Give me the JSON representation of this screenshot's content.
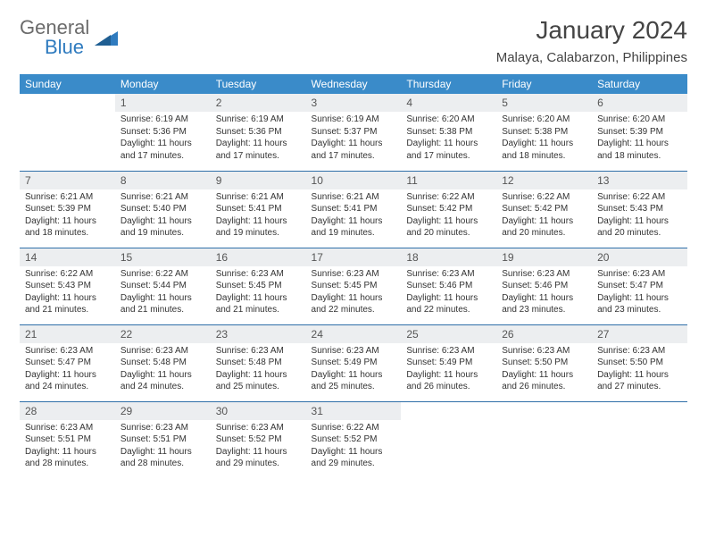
{
  "brand": {
    "part1": "General",
    "part2": "Blue"
  },
  "title": "January 2024",
  "location": "Malaya, Calabarzon, Philippines",
  "colors": {
    "header_bg": "#3a8bc9",
    "header_fg": "#ffffff",
    "daynum_bg": "#eceef0",
    "rule": "#2f6fa8",
    "brand_blue": "#2f7bbf",
    "brand_gray": "#6b6b6b"
  },
  "weekdays": [
    "Sunday",
    "Monday",
    "Tuesday",
    "Wednesday",
    "Thursday",
    "Friday",
    "Saturday"
  ],
  "weeks": [
    [
      null,
      {
        "n": "1",
        "sr": "Sunrise: 6:19 AM",
        "ss": "Sunset: 5:36 PM",
        "d1": "Daylight: 11 hours",
        "d2": "and 17 minutes."
      },
      {
        "n": "2",
        "sr": "Sunrise: 6:19 AM",
        "ss": "Sunset: 5:36 PM",
        "d1": "Daylight: 11 hours",
        "d2": "and 17 minutes."
      },
      {
        "n": "3",
        "sr": "Sunrise: 6:19 AM",
        "ss": "Sunset: 5:37 PM",
        "d1": "Daylight: 11 hours",
        "d2": "and 17 minutes."
      },
      {
        "n": "4",
        "sr": "Sunrise: 6:20 AM",
        "ss": "Sunset: 5:38 PM",
        "d1": "Daylight: 11 hours",
        "d2": "and 17 minutes."
      },
      {
        "n": "5",
        "sr": "Sunrise: 6:20 AM",
        "ss": "Sunset: 5:38 PM",
        "d1": "Daylight: 11 hours",
        "d2": "and 18 minutes."
      },
      {
        "n": "6",
        "sr": "Sunrise: 6:20 AM",
        "ss": "Sunset: 5:39 PM",
        "d1": "Daylight: 11 hours",
        "d2": "and 18 minutes."
      }
    ],
    [
      {
        "n": "7",
        "sr": "Sunrise: 6:21 AM",
        "ss": "Sunset: 5:39 PM",
        "d1": "Daylight: 11 hours",
        "d2": "and 18 minutes."
      },
      {
        "n": "8",
        "sr": "Sunrise: 6:21 AM",
        "ss": "Sunset: 5:40 PM",
        "d1": "Daylight: 11 hours",
        "d2": "and 19 minutes."
      },
      {
        "n": "9",
        "sr": "Sunrise: 6:21 AM",
        "ss": "Sunset: 5:41 PM",
        "d1": "Daylight: 11 hours",
        "d2": "and 19 minutes."
      },
      {
        "n": "10",
        "sr": "Sunrise: 6:21 AM",
        "ss": "Sunset: 5:41 PM",
        "d1": "Daylight: 11 hours",
        "d2": "and 19 minutes."
      },
      {
        "n": "11",
        "sr": "Sunrise: 6:22 AM",
        "ss": "Sunset: 5:42 PM",
        "d1": "Daylight: 11 hours",
        "d2": "and 20 minutes."
      },
      {
        "n": "12",
        "sr": "Sunrise: 6:22 AM",
        "ss": "Sunset: 5:42 PM",
        "d1": "Daylight: 11 hours",
        "d2": "and 20 minutes."
      },
      {
        "n": "13",
        "sr": "Sunrise: 6:22 AM",
        "ss": "Sunset: 5:43 PM",
        "d1": "Daylight: 11 hours",
        "d2": "and 20 minutes."
      }
    ],
    [
      {
        "n": "14",
        "sr": "Sunrise: 6:22 AM",
        "ss": "Sunset: 5:43 PM",
        "d1": "Daylight: 11 hours",
        "d2": "and 21 minutes."
      },
      {
        "n": "15",
        "sr": "Sunrise: 6:22 AM",
        "ss": "Sunset: 5:44 PM",
        "d1": "Daylight: 11 hours",
        "d2": "and 21 minutes."
      },
      {
        "n": "16",
        "sr": "Sunrise: 6:23 AM",
        "ss": "Sunset: 5:45 PM",
        "d1": "Daylight: 11 hours",
        "d2": "and 21 minutes."
      },
      {
        "n": "17",
        "sr": "Sunrise: 6:23 AM",
        "ss": "Sunset: 5:45 PM",
        "d1": "Daylight: 11 hours",
        "d2": "and 22 minutes."
      },
      {
        "n": "18",
        "sr": "Sunrise: 6:23 AM",
        "ss": "Sunset: 5:46 PM",
        "d1": "Daylight: 11 hours",
        "d2": "and 22 minutes."
      },
      {
        "n": "19",
        "sr": "Sunrise: 6:23 AM",
        "ss": "Sunset: 5:46 PM",
        "d1": "Daylight: 11 hours",
        "d2": "and 23 minutes."
      },
      {
        "n": "20",
        "sr": "Sunrise: 6:23 AM",
        "ss": "Sunset: 5:47 PM",
        "d1": "Daylight: 11 hours",
        "d2": "and 23 minutes."
      }
    ],
    [
      {
        "n": "21",
        "sr": "Sunrise: 6:23 AM",
        "ss": "Sunset: 5:47 PM",
        "d1": "Daylight: 11 hours",
        "d2": "and 24 minutes."
      },
      {
        "n": "22",
        "sr": "Sunrise: 6:23 AM",
        "ss": "Sunset: 5:48 PM",
        "d1": "Daylight: 11 hours",
        "d2": "and 24 minutes."
      },
      {
        "n": "23",
        "sr": "Sunrise: 6:23 AM",
        "ss": "Sunset: 5:48 PM",
        "d1": "Daylight: 11 hours",
        "d2": "and 25 minutes."
      },
      {
        "n": "24",
        "sr": "Sunrise: 6:23 AM",
        "ss": "Sunset: 5:49 PM",
        "d1": "Daylight: 11 hours",
        "d2": "and 25 minutes."
      },
      {
        "n": "25",
        "sr": "Sunrise: 6:23 AM",
        "ss": "Sunset: 5:49 PM",
        "d1": "Daylight: 11 hours",
        "d2": "and 26 minutes."
      },
      {
        "n": "26",
        "sr": "Sunrise: 6:23 AM",
        "ss": "Sunset: 5:50 PM",
        "d1": "Daylight: 11 hours",
        "d2": "and 26 minutes."
      },
      {
        "n": "27",
        "sr": "Sunrise: 6:23 AM",
        "ss": "Sunset: 5:50 PM",
        "d1": "Daylight: 11 hours",
        "d2": "and 27 minutes."
      }
    ],
    [
      {
        "n": "28",
        "sr": "Sunrise: 6:23 AM",
        "ss": "Sunset: 5:51 PM",
        "d1": "Daylight: 11 hours",
        "d2": "and 28 minutes."
      },
      {
        "n": "29",
        "sr": "Sunrise: 6:23 AM",
        "ss": "Sunset: 5:51 PM",
        "d1": "Daylight: 11 hours",
        "d2": "and 28 minutes."
      },
      {
        "n": "30",
        "sr": "Sunrise: 6:23 AM",
        "ss": "Sunset: 5:52 PM",
        "d1": "Daylight: 11 hours",
        "d2": "and 29 minutes."
      },
      {
        "n": "31",
        "sr": "Sunrise: 6:22 AM",
        "ss": "Sunset: 5:52 PM",
        "d1": "Daylight: 11 hours",
        "d2": "and 29 minutes."
      },
      null,
      null,
      null
    ]
  ]
}
